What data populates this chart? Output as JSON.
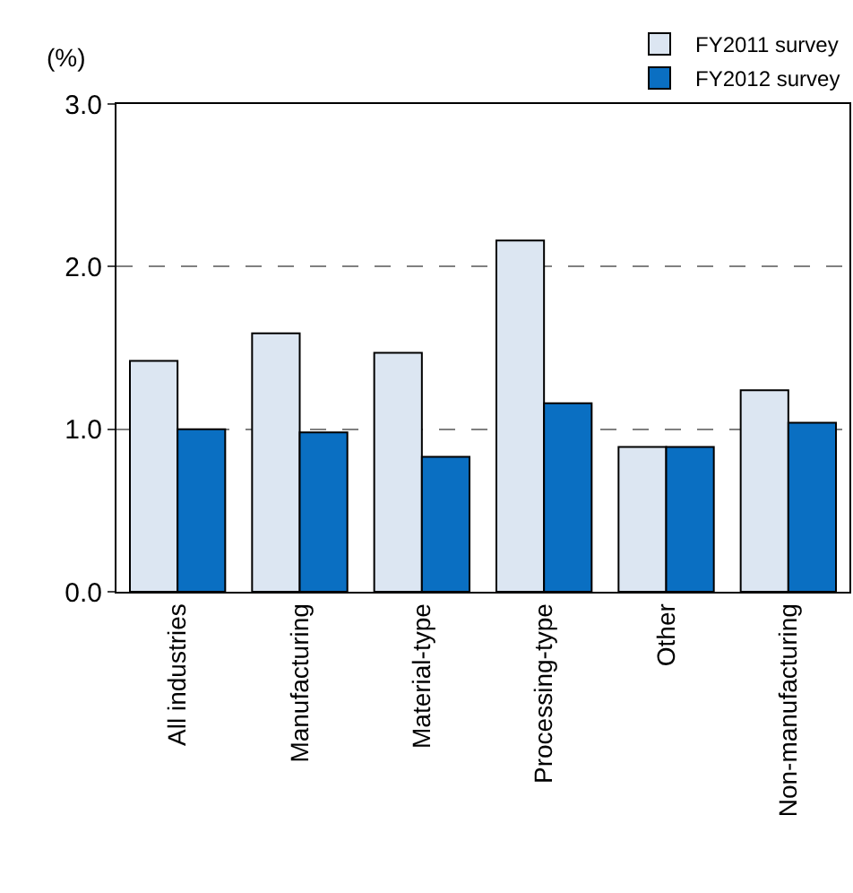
{
  "chart_data": {
    "type": "bar",
    "ylabel": "(%)",
    "categories": [
      "All industries",
      "Manufacturing",
      "Material-type",
      "Processing-type",
      "Other",
      "Non-manufacturing"
    ],
    "series": [
      {
        "name": "FY2011 survey",
        "color": "#dce6f2",
        "values": [
          1.42,
          1.59,
          1.47,
          2.16,
          0.89,
          1.24
        ]
      },
      {
        "name": "FY2012 survey",
        "color": "#0a6fc2",
        "values": [
          1.0,
          0.98,
          0.83,
          1.16,
          0.89,
          1.04
        ]
      }
    ],
    "ylim": [
      0,
      3
    ],
    "yticks": [
      {
        "value": 0,
        "label": "0.0"
      },
      {
        "value": 1,
        "label": "1.0"
      },
      {
        "value": 2,
        "label": "2.0"
      },
      {
        "value": 3,
        "label": "3.0"
      }
    ],
    "grid": "y",
    "legend": "top right"
  }
}
